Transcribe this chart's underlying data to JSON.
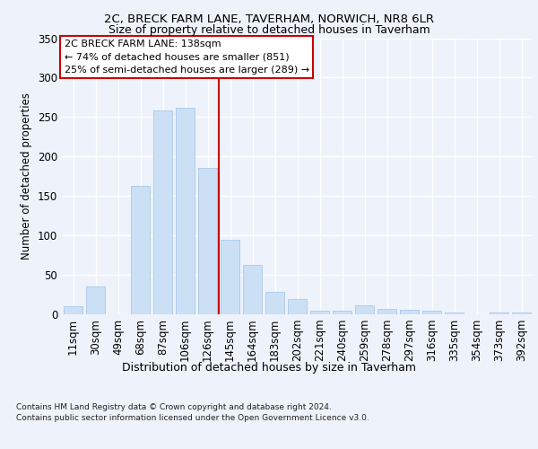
{
  "title1": "2C, BRECK FARM LANE, TAVERHAM, NORWICH, NR8 6LR",
  "title2": "Size of property relative to detached houses in Taverham",
  "xlabel": "Distribution of detached houses by size in Taverham",
  "ylabel": "Number of detached properties",
  "categories": [
    "11sqm",
    "30sqm",
    "49sqm",
    "68sqm",
    "87sqm",
    "106sqm",
    "126sqm",
    "145sqm",
    "164sqm",
    "183sqm",
    "202sqm",
    "221sqm",
    "240sqm",
    "259sqm",
    "278sqm",
    "297sqm",
    "316sqm",
    "335sqm",
    "354sqm",
    "373sqm",
    "392sqm"
  ],
  "values": [
    10,
    35,
    0,
    163,
    258,
    262,
    185,
    95,
    63,
    28,
    19,
    5,
    5,
    11,
    7,
    6,
    4,
    2,
    0,
    2,
    2
  ],
  "bar_color": "#cce0f5",
  "bar_edge_color": "#a8c8e8",
  "vline_x_index": 6.5,
  "vline_color": "#cc0000",
  "annotation_line1": "2C BRECK FARM LANE: 138sqm",
  "annotation_line2": "← 74% of detached houses are smaller (851)",
  "annotation_line3": "25% of semi-detached houses are larger (289) →",
  "annotation_box_color": "#ffffff",
  "annotation_box_edge": "#cc0000",
  "footnote1": "Contains HM Land Registry data © Crown copyright and database right 2024.",
  "footnote2": "Contains public sector information licensed under the Open Government Licence v3.0.",
  "ylim": [
    0,
    350
  ],
  "yticks": [
    0,
    50,
    100,
    150,
    200,
    250,
    300,
    350
  ],
  "background_color": "#eef2fb",
  "grid_color": "#ffffff"
}
